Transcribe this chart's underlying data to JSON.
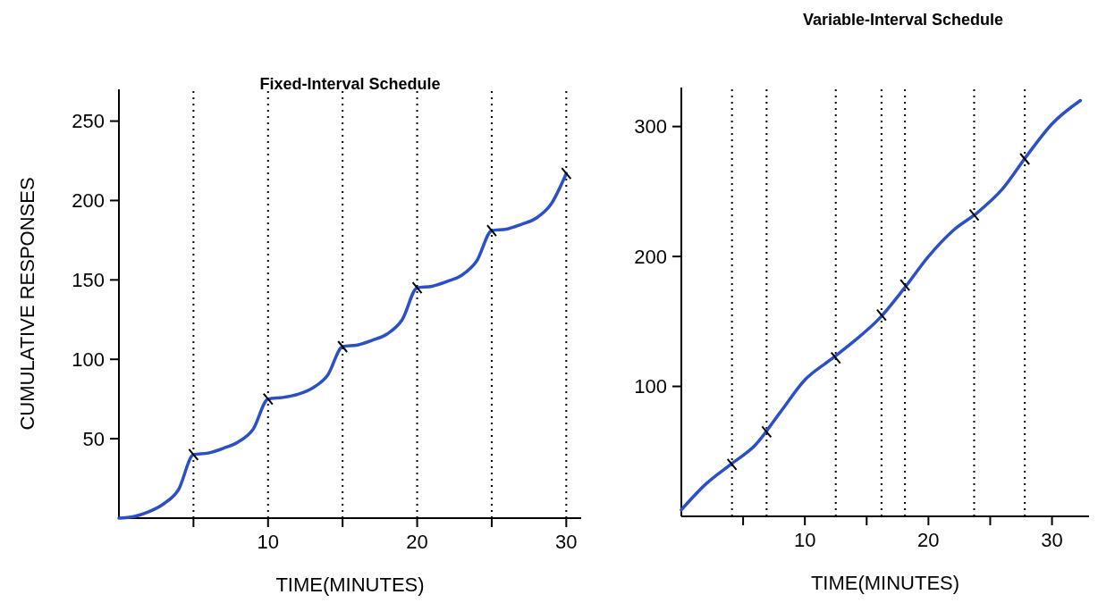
{
  "chart_data": [
    {
      "type": "line",
      "title": "Fixed-Interval Schedule",
      "xlabel": "TIME(MINUTES)",
      "ylabel": "CUMULATIVE RESPONSES",
      "xlim": [
        0,
        31
      ],
      "ylim": [
        0,
        270
      ],
      "xticks": [
        {
          "value": 5,
          "label": null
        },
        10,
        {
          "value": 15,
          "label": null
        },
        20,
        {
          "value": 25,
          "label": null
        },
        30
      ],
      "yticks": [
        50,
        100,
        150,
        200,
        250
      ],
      "series": [
        {
          "color": "#2a4fc8",
          "x": [
            0,
            1,
            2,
            3,
            4,
            5,
            6,
            7,
            8,
            9,
            10,
            11,
            12,
            13,
            14,
            15,
            16,
            17,
            18,
            19,
            20,
            21,
            22,
            23,
            24,
            25,
            26,
            27,
            28,
            29,
            30
          ],
          "values": [
            0,
            1,
            4,
            9,
            18,
            40,
            41,
            44,
            48,
            56,
            75,
            76,
            78,
            82,
            90,
            108,
            109,
            112,
            116,
            125,
            145,
            146,
            149,
            153,
            162,
            181,
            182,
            185,
            189,
            198,
            217
          ]
        },
        {
          "type": "scatter",
          "color": "#000000",
          "x": [
            5,
            10,
            15,
            20,
            25,
            30
          ],
          "values": [
            40,
            75,
            108,
            145,
            181,
            217
          ]
        }
      ],
      "ref_lines": [
        {
          "axis": "x",
          "value": 5,
          "color": "#000000",
          "line_style": "dotted"
        },
        {
          "axis": "x",
          "value": 10,
          "color": "#000000",
          "line_style": "dotted"
        },
        {
          "axis": "x",
          "value": 15,
          "color": "#000000",
          "line_style": "dotted"
        },
        {
          "axis": "x",
          "value": 20,
          "color": "#000000",
          "line_style": "dotted"
        },
        {
          "axis": "x",
          "value": 25,
          "color": "#000000",
          "line_style": "dotted"
        },
        {
          "axis": "x",
          "value": 30,
          "color": "#000000",
          "line_style": "dotted"
        }
      ]
    },
    {
      "type": "line",
      "title": "Variable-Interval Schedule",
      "xlabel": "TIME(MINUTES)",
      "xlim": [
        0,
        33
      ],
      "ylim": [
        0,
        330
      ],
      "xticks": [
        {
          "value": 5,
          "label": null
        },
        10,
        {
          "value": 15,
          "label": null
        },
        20,
        {
          "value": 25,
          "label": null
        },
        30
      ],
      "yticks": [
        100,
        200,
        300
      ],
      "series": [
        {
          "color": "#2a4fc8",
          "x": [
            0,
            2,
            4,
            6,
            8,
            10,
            12,
            14,
            16,
            18,
            20,
            22,
            24,
            26,
            28,
            30,
            32.3
          ],
          "values": [
            5,
            25,
            40,
            55,
            80,
            105,
            120,
            135,
            152,
            175,
            200,
            220,
            234,
            252,
            278,
            302,
            320
          ]
        },
        {
          "type": "scatter",
          "color": "#000000",
          "x": [
            4.1,
            6.9,
            12.5,
            16.2,
            18.1,
            23.7,
            27.8
          ],
          "values": [
            40,
            65,
            122,
            155,
            178,
            232,
            275
          ]
        }
      ],
      "ref_lines": [
        {
          "axis": "x",
          "value": 4.1,
          "color": "#000000",
          "line_style": "dotted"
        },
        {
          "axis": "x",
          "value": 6.9,
          "color": "#000000",
          "line_style": "dotted"
        },
        {
          "axis": "x",
          "value": 12.5,
          "color": "#000000",
          "line_style": "dotted"
        },
        {
          "axis": "x",
          "value": 16.2,
          "color": "#000000",
          "line_style": "dotted"
        },
        {
          "axis": "x",
          "value": 18.1,
          "color": "#000000",
          "line_style": "dotted"
        },
        {
          "axis": "x",
          "value": 23.7,
          "color": "#000000",
          "line_style": "dotted"
        },
        {
          "axis": "x",
          "value": 27.8,
          "color": "#000000",
          "line_style": "dotted"
        }
      ]
    }
  ]
}
